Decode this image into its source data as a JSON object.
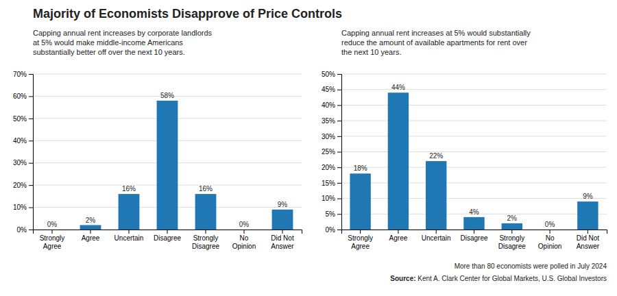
{
  "title": "Majority of Economists Disapprove of Price Controls",
  "annotations": [
    "More than 80 economists were polled in July 2024",
    "Source: Kent A. Clark Center for Global Markets, U.S. Global Investors"
  ],
  "chart_data": [
    {
      "type": "bar",
      "subtitle": "Capping annual rent increases by corporate landlords\nat 5% would make middle-income Americans\nsubstantially better off over the next 10 years.",
      "categories": [
        "Strongly\nAgree",
        "Agree",
        "Uncertain",
        "Disagree",
        "Strongly\nDisagree",
        "No\nOpinion",
        "Did Not\nAnswer"
      ],
      "values": [
        0,
        2,
        16,
        58,
        16,
        0,
        9
      ],
      "value_labels": [
        "0%",
        "2%",
        "16%",
        "58%",
        "16%",
        "0%",
        "9%"
      ],
      "color": "#1f77b4",
      "ylim": [
        0,
        70
      ],
      "yticks": [
        {
          "value": 0,
          "label": "0%"
        },
        {
          "value": 10,
          "label": "10%"
        },
        {
          "value": 20,
          "label": "20%"
        },
        {
          "value": 30,
          "label": "30%"
        },
        {
          "value": 40,
          "label": "40%"
        },
        {
          "value": 50,
          "label": "50%"
        },
        {
          "value": 60,
          "label": "60%"
        },
        {
          "value": 70,
          "label": "70%"
        }
      ],
      "grid": true,
      "data_labels": true
    },
    {
      "type": "bar",
      "subtitle": "Capping annual rent increases at 5% would substantially\nreduce the amount of available apartments for rent over\nthe next 10 years.",
      "categories": [
        "Strongly\nAgree",
        "Agree",
        "Uncertain",
        "Disagree",
        "Strongly\nDisagree",
        "No\nOpinion",
        "Did Not\nAnswer"
      ],
      "values": [
        18,
        44,
        22,
        4,
        2,
        0,
        9
      ],
      "value_labels": [
        "18%",
        "44%",
        "22%",
        "4%",
        "2%",
        "0%",
        "9%"
      ],
      "color": "#1f77b4",
      "ylim": [
        0,
        50
      ],
      "yticks": [
        {
          "value": 0,
          "label": "0%"
        },
        {
          "value": 5,
          "label": "5%"
        },
        {
          "value": 10,
          "label": "10%"
        },
        {
          "value": 15,
          "label": "15%"
        },
        {
          "value": 20,
          "label": "20%"
        },
        {
          "value": 25,
          "label": "25%"
        },
        {
          "value": 30,
          "label": "30%"
        },
        {
          "value": 35,
          "label": "35%"
        },
        {
          "value": 40,
          "label": "40%"
        },
        {
          "value": 45,
          "label": "45%"
        },
        {
          "value": 50,
          "label": "50%"
        }
      ],
      "grid": true,
      "data_labels": true
    }
  ]
}
